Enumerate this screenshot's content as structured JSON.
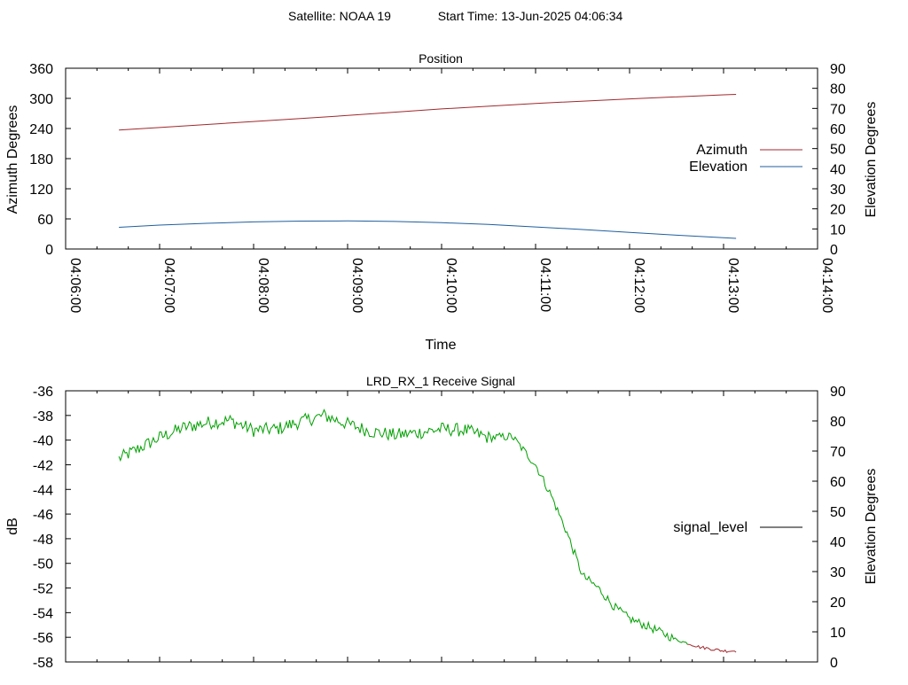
{
  "header": {
    "satellite": "Satellite: NOAA 19",
    "start_time": "Start Time: 13-Jun-2025 04:06:34"
  },
  "chart_data": [
    {
      "type": "line",
      "title": "Position",
      "xlabel": "Time",
      "ylabel": "Azimuth Degrees",
      "y2label": "Elevation Degrees",
      "xlim": [
        "04:06:00",
        "04:14:00"
      ],
      "ylim": [
        0,
        360
      ],
      "y2lim": [
        0,
        90
      ],
      "x_ticks": [
        "04:06:00",
        "04:07:00",
        "04:08:00",
        "04:09:00",
        "04:10:00",
        "04:11:00",
        "04:12:00",
        "04:13:00",
        "04:14:00"
      ],
      "y_ticks": [
        "0",
        "60",
        "120",
        "180",
        "240",
        "300",
        "360"
      ],
      "y2_ticks": [
        "0",
        "10",
        "20",
        "30",
        "40",
        "50",
        "60",
        "70",
        "80",
        "90"
      ],
      "legend_position": "right",
      "series": [
        {
          "name": "Azimuth",
          "axis": "y",
          "color": "#a0282d",
          "x": [
            "04:06:34",
            "04:07:00",
            "04:08:00",
            "04:09:00",
            "04:10:00",
            "04:11:00",
            "04:12:00",
            "04:13:00",
            "04:13:08"
          ],
          "values": [
            237,
            242,
            254,
            266,
            279,
            290,
            299,
            307,
            308
          ]
        },
        {
          "name": "Elevation",
          "axis": "y2",
          "color": "#1f5e9e",
          "x": [
            "04:06:34",
            "04:07:00",
            "04:07:30",
            "04:08:00",
            "04:08:30",
            "04:09:00",
            "04:09:30",
            "04:10:00",
            "04:10:30",
            "04:11:00",
            "04:11:30",
            "04:12:00",
            "04:12:30",
            "04:13:00",
            "04:13:08"
          ],
          "values": [
            10.8,
            11.9,
            12.8,
            13.5,
            13.9,
            14.0,
            13.7,
            13.1,
            12.2,
            11.0,
            9.7,
            8.3,
            6.9,
            5.6,
            5.3
          ]
        }
      ]
    },
    {
      "type": "line",
      "title": "LRD_RX_1 Receive Signal",
      "ylabel": "dB",
      "y2label": "Elevation Degrees",
      "xlim": [
        "04:06:00",
        "04:14:00"
      ],
      "ylim": [
        -58,
        -36
      ],
      "y2lim": [
        0,
        90
      ],
      "y_ticks": [
        "-58",
        "-56",
        "-54",
        "-52",
        "-50",
        "-48",
        "-46",
        "-44",
        "-42",
        "-40",
        "-38",
        "-36"
      ],
      "y2_ticks": [
        "0",
        "10",
        "20",
        "30",
        "40",
        "50",
        "60",
        "70",
        "80",
        "90"
      ],
      "legend_position": "right",
      "legend_color": "#000000",
      "series": [
        {
          "name": "signal_level",
          "color": "#00a000",
          "low_color": "#a0282d",
          "low_threshold": -56.5,
          "x": [
            "04:06:34",
            "04:06:45",
            "04:07:00",
            "04:07:15",
            "04:07:30",
            "04:07:45",
            "04:08:00",
            "04:08:15",
            "04:08:30",
            "04:08:45",
            "04:09:00",
            "04:09:15",
            "04:09:30",
            "04:09:45",
            "04:10:00",
            "04:10:15",
            "04:10:30",
            "04:10:45",
            "04:11:00",
            "04:11:10",
            "04:11:20",
            "04:11:30",
            "04:11:40",
            "04:11:50",
            "04:12:00",
            "04:12:15",
            "04:12:30",
            "04:12:45",
            "04:13:00",
            "04:13:08"
          ],
          "values": [
            -41.5,
            -40.8,
            -39.8,
            -39.0,
            -38.6,
            -38.4,
            -39.2,
            -39.1,
            -38.5,
            -38.0,
            -38.7,
            -39.3,
            -39.6,
            -39.4,
            -39.1,
            -39.2,
            -39.8,
            -39.7,
            -42.0,
            -44.5,
            -47.5,
            -51.0,
            -52.0,
            -53.5,
            -54.5,
            -55.3,
            -56.2,
            -56.8,
            -57.1,
            -57.1
          ]
        }
      ]
    }
  ]
}
